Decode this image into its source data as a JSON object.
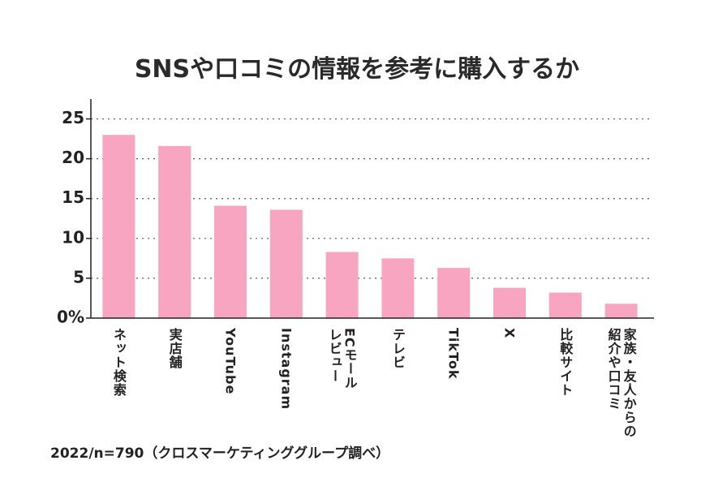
{
  "chart_data": {
    "type": "bar",
    "title": "SNSや口コミの情報を参考に購入するか",
    "note": "2022/n=790（クロスマーケティンググループ調べ）",
    "categories": [
      "ネット検索",
      "実店舗",
      "YouTube",
      "Instagram",
      "ECモール\nレビュー",
      "テレビ",
      "TikTok",
      "X",
      "比較サイト",
      "家族・友人からの\n紹介や口コミ"
    ],
    "values": [
      23.0,
      21.6,
      14.1,
      13.6,
      8.3,
      7.5,
      6.3,
      3.8,
      3.2,
      1.8
    ],
    "color": "#f7a5c1",
    "ylim": [
      0,
      27.5
    ],
    "yticks": [
      {
        "value": 0,
        "label": "0%"
      },
      5,
      10,
      15,
      20,
      25
    ],
    "grid": true
  }
}
